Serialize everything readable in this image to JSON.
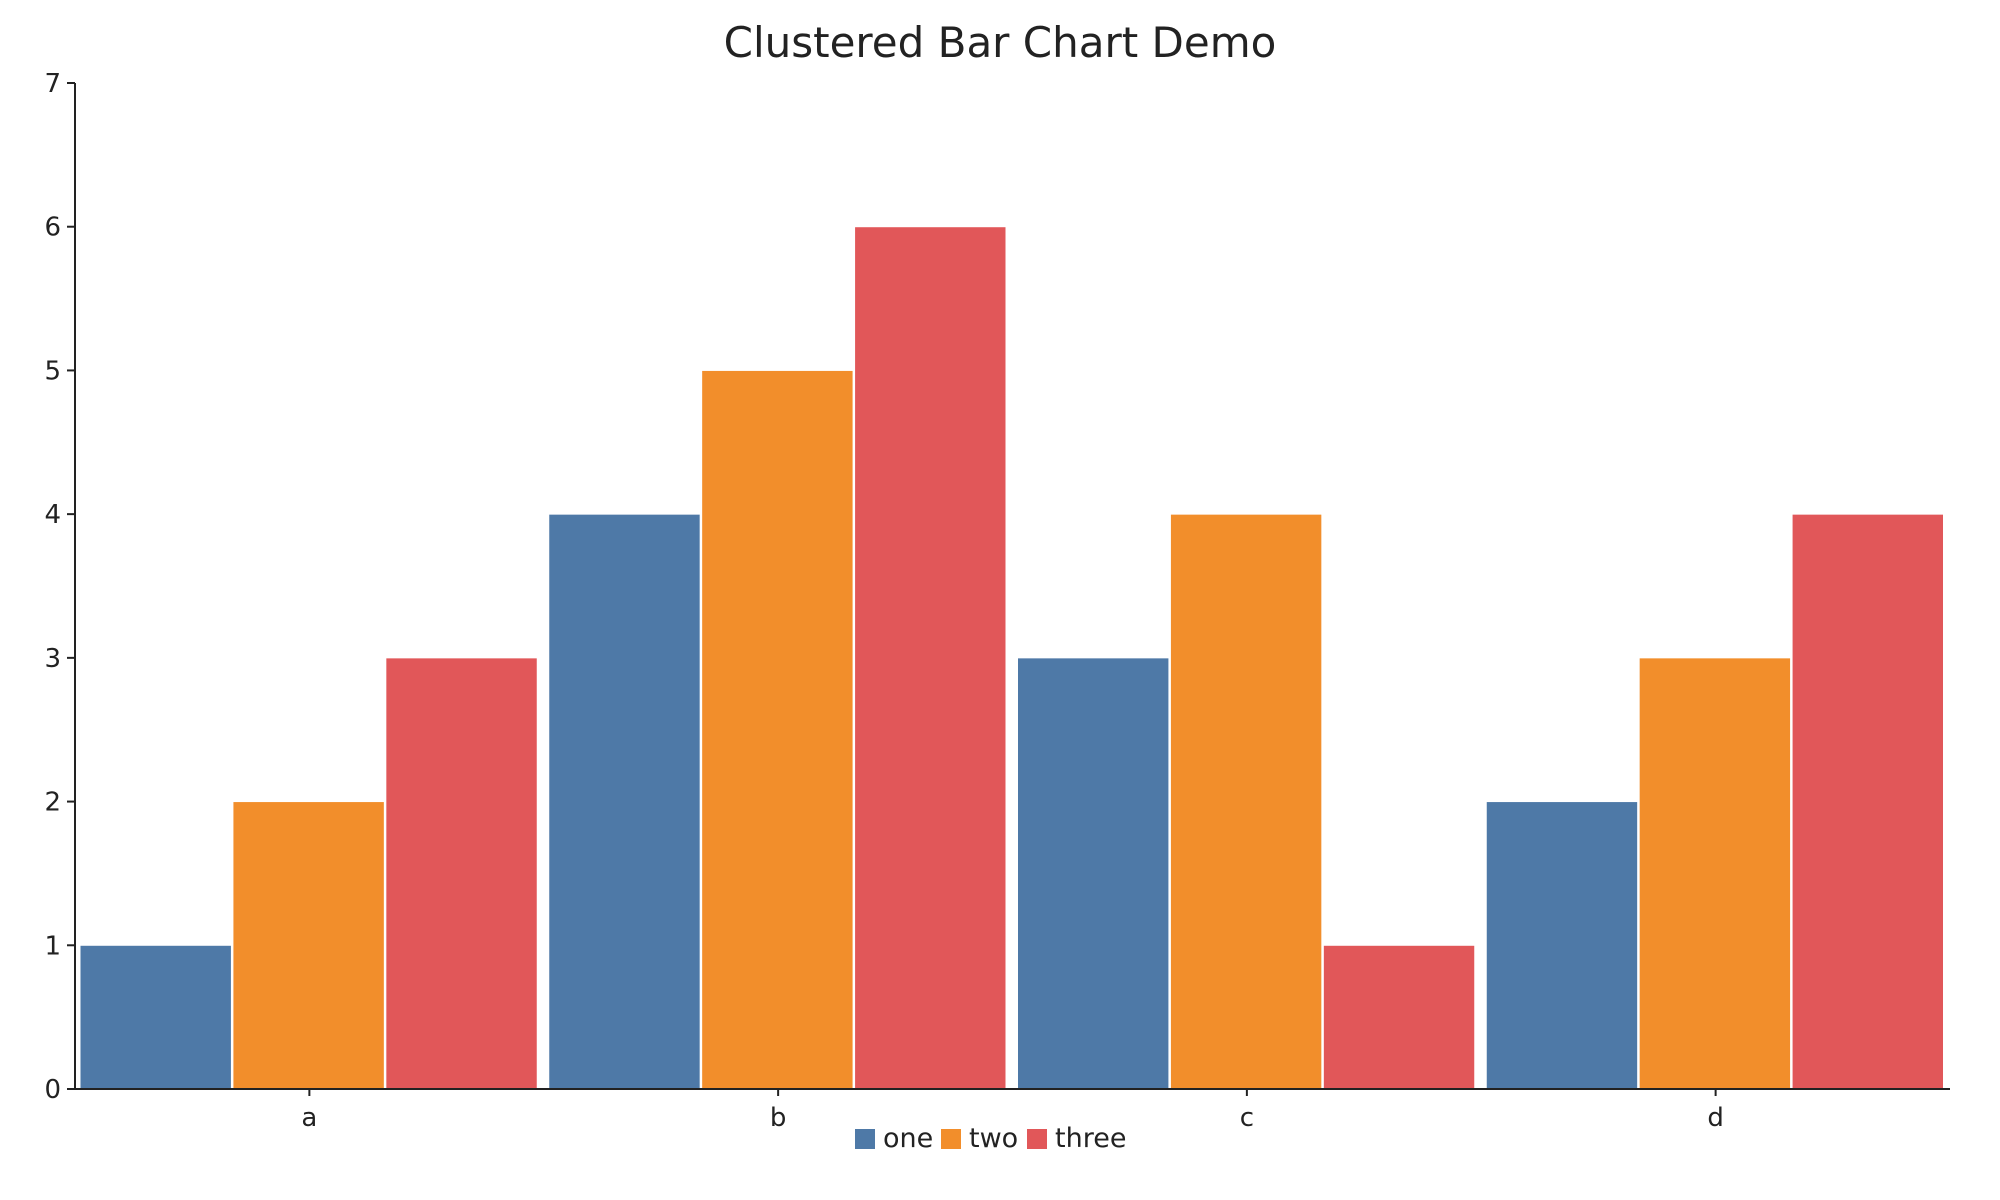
{
  "chart_data": {
    "type": "bar",
    "title": "Clustered Bar Chart Demo",
    "xlabel": "",
    "ylabel": "",
    "categories": [
      "a",
      "b",
      "c",
      "d"
    ],
    "series": [
      {
        "name": "one",
        "color": "#4e79a7",
        "values": [
          1,
          4,
          3,
          2
        ]
      },
      {
        "name": "two",
        "color": "#f28e2b",
        "values": [
          2,
          5,
          4,
          3
        ]
      },
      {
        "name": "three",
        "color": "#e15759",
        "values": [
          3,
          6,
          1,
          4
        ]
      }
    ],
    "ylim": [
      0,
      7
    ],
    "yticks": [
      0,
      1,
      2,
      3,
      4,
      5,
      6,
      7
    ],
    "grid": false,
    "legend_position": "bottom-center"
  }
}
